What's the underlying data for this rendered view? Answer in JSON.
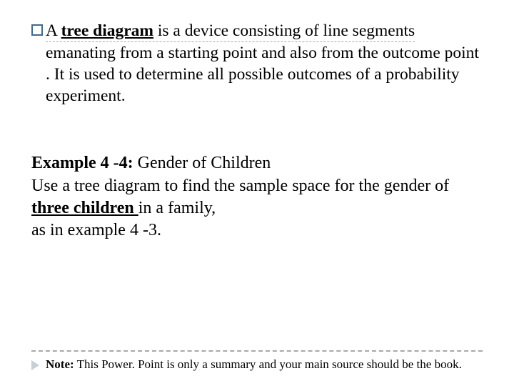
{
  "definition": {
    "first_line_prefix": "A  ",
    "term": "tree diagram",
    "first_line_suffix": "  is  a device consisting of line segments ",
    "rest": "emanating from a starting point and also from the outcome point . It is used to determine all possible outcomes of a probability experiment.",
    "bullet_border_color": "#42698e"
  },
  "example": {
    "label": "Example 4 -4: ",
    "title": "Gender of Children",
    "body_pre": "Use a tree diagram to find the sample space for the gender of ",
    "emph": "three children ",
    "body_post": "in a family,",
    "body_line2": "as in example 4 -3."
  },
  "footnote": {
    "bold": "Note:",
    "rest": " This Power. Point is only a summary and your main source should be the book."
  },
  "colors": {
    "dash": "#a9a9a9",
    "foot_marker": "#c8cfd6",
    "text": "#000000",
    "bg": "#ffffff"
  }
}
